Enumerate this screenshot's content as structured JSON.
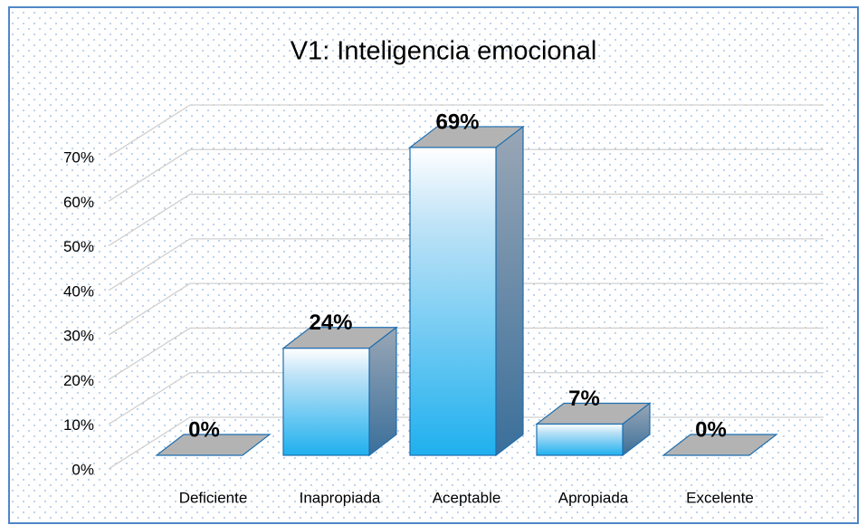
{
  "chart_data": {
    "type": "bar3d",
    "title": "V1: Inteligencia emocional",
    "categories": [
      "Deficiente",
      "Inapropiada",
      "Aceptable",
      "Apropiada",
      "Excelente"
    ],
    "values": [
      0,
      24,
      69,
      7,
      0
    ],
    "value_labels": [
      "0%",
      "24%",
      "69%",
      "7%",
      "0%"
    ],
    "color": "#29b6f0",
    "ylim": [
      0,
      70
    ],
    "yticks": [
      {
        "value": 0,
        "label": "0%"
      },
      {
        "value": 10,
        "label": "10%"
      },
      {
        "value": 20,
        "label": "20%"
      },
      {
        "value": 30,
        "label": "30%"
      },
      {
        "value": 40,
        "label": "40%"
      },
      {
        "value": 50,
        "label": "50%"
      },
      {
        "value": 60,
        "label": "60%"
      },
      {
        "value": 70,
        "label": "70%"
      }
    ],
    "grid": true
  }
}
